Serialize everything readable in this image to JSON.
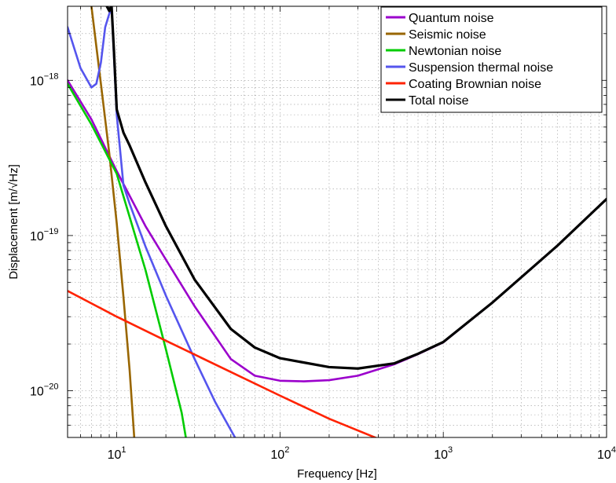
{
  "chart_data": {
    "type": "line",
    "title": "",
    "xlabel": "Frequency [Hz]",
    "ylabel": "Displacement [m/√Hz]",
    "xscale": "log",
    "yscale": "log",
    "xlim": [
      5,
      10000
    ],
    "ylim": [
      5e-21,
      3e-18
    ],
    "grid": true,
    "legend_position": "top-right",
    "x_ticks": [
      {
        "value": 10,
        "base": "10",
        "exp": "1"
      },
      {
        "value": 100,
        "base": "10",
        "exp": "2"
      },
      {
        "value": 1000,
        "base": "10",
        "exp": "3"
      },
      {
        "value": 10000,
        "base": "10",
        "exp": "4"
      }
    ],
    "y_ticks": [
      {
        "value": 1e-20,
        "base": "10",
        "exp": "−20"
      },
      {
        "value": 1e-19,
        "base": "10",
        "exp": "−19"
      },
      {
        "value": 1e-18,
        "base": "10",
        "exp": "−18"
      }
    ],
    "series": [
      {
        "name": "Quantum noise",
        "color": "#9b00cc",
        "x": [
          5,
          7,
          10,
          15,
          20,
          30,
          50,
          70,
          100,
          140,
          200,
          300,
          500,
          700,
          1000,
          2000,
          5000,
          10000
        ],
        "y": [
          1e-18,
          5.6e-19,
          2.6e-19,
          1.15e-19,
          7e-20,
          3.5e-20,
          1.6e-20,
          1.25e-20,
          1.16e-20,
          1.15e-20,
          1.17e-20,
          1.25e-20,
          1.48e-20,
          1.72e-20,
          2.05e-20,
          3.7e-20,
          8.6e-20,
          1.72e-19
        ]
      },
      {
        "name": "Seismic noise",
        "color": "#996600",
        "x": [
          7,
          8,
          9,
          10,
          11,
          12,
          12.8
        ],
        "y": [
          3e-18,
          9.5e-19,
          3.4e-19,
          1.2e-19,
          4e-20,
          1.35e-20,
          5e-21
        ]
      },
      {
        "name": "Newtonian noise",
        "color": "#00cc00",
        "x": [
          5,
          7,
          10,
          15,
          20,
          25,
          26.5
        ],
        "y": [
          9.5e-19,
          5.2e-19,
          2.5e-19,
          6e-20,
          1.85e-20,
          7.2e-21,
          5e-21
        ]
      },
      {
        "name": "Suspension thermal noise",
        "color": "#5555ee",
        "x": [
          5,
          6,
          7,
          7.5,
          8,
          8.5,
          9.3,
          10,
          11,
          12,
          15,
          20,
          30,
          40,
          53
        ],
        "y": [
          2.2e-18,
          1.2e-18,
          9e-19,
          9.5e-19,
          1.3e-18,
          2.2e-18,
          3e-18,
          6e-19,
          2.1e-19,
          1.6e-19,
          8.5e-20,
          4.1e-20,
          1.6e-20,
          8.5e-21,
          5e-21
        ]
      },
      {
        "name": "Coating Brownian noise",
        "color": "#ff2200",
        "x": [
          5,
          10,
          20,
          50,
          100,
          200,
          400
        ],
        "y": [
          4.4e-20,
          3e-20,
          2.1e-20,
          1.32e-20,
          9.3e-21,
          6.6e-21,
          4.9e-21
        ]
      },
      {
        "name": "Total noise",
        "color": "#000000",
        "x": [
          8.7,
          9.0,
          9.3,
          9.6,
          10,
          11,
          12,
          15,
          20,
          30,
          50,
          70,
          100,
          200,
          300,
          500,
          700,
          1000,
          2000,
          5000,
          10000
        ],
        "y": [
          3e-18,
          2.8e-18,
          3e-18,
          1.6e-18,
          6.5e-19,
          4.6e-19,
          3.8e-19,
          2.2e-19,
          1.15e-19,
          5.2e-20,
          2.5e-20,
          1.9e-20,
          1.62e-20,
          1.42e-20,
          1.39e-20,
          1.5e-20,
          1.73e-20,
          2.06e-20,
          3.7e-20,
          8.6e-20,
          1.72e-19
        ]
      }
    ]
  }
}
